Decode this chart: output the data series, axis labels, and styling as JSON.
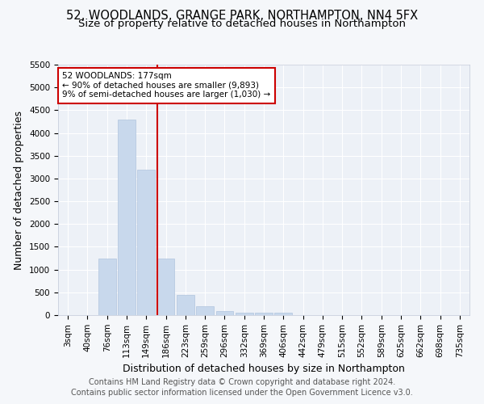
{
  "title_line1": "52, WOODLANDS, GRANGE PARK, NORTHAMPTON, NN4 5FX",
  "title_line2": "Size of property relative to detached houses in Northampton",
  "xlabel": "Distribution of detached houses by size in Northampton",
  "ylabel": "Number of detached properties",
  "bar_color": "#c8d8ec",
  "bar_edge_color": "#b0c4de",
  "vline_color": "#cc0000",
  "annotation_text": "52 WOODLANDS: 177sqm\n← 90% of detached houses are smaller (9,893)\n9% of semi-detached houses are larger (1,030) →",
  "annotation_box_color": "#ffffff",
  "annotation_box_edge": "#cc0000",
  "categories": [
    "3sqm",
    "40sqm",
    "76sqm",
    "113sqm",
    "149sqm",
    "186sqm",
    "223sqm",
    "259sqm",
    "296sqm",
    "332sqm",
    "369sqm",
    "406sqm",
    "442sqm",
    "479sqm",
    "515sqm",
    "552sqm",
    "589sqm",
    "625sqm",
    "662sqm",
    "698sqm",
    "735sqm"
  ],
  "values": [
    0,
    0,
    1250,
    4300,
    3200,
    1250,
    450,
    200,
    80,
    55,
    50,
    50,
    0,
    0,
    0,
    0,
    0,
    0,
    0,
    0,
    0
  ],
  "ylim": [
    0,
    5500
  ],
  "yticks": [
    0,
    500,
    1000,
    1500,
    2000,
    2500,
    3000,
    3500,
    4000,
    4500,
    5000,
    5500
  ],
  "footer_line1": "Contains HM Land Registry data © Crown copyright and database right 2024.",
  "footer_line2": "Contains public sector information licensed under the Open Government Licence v3.0.",
  "bg_color": "#f5f7fa",
  "plot_bg_color": "#edf1f7",
  "title_fontsize": 10.5,
  "subtitle_fontsize": 9.5,
  "axis_label_fontsize": 9,
  "tick_fontsize": 7.5,
  "footer_fontsize": 7
}
